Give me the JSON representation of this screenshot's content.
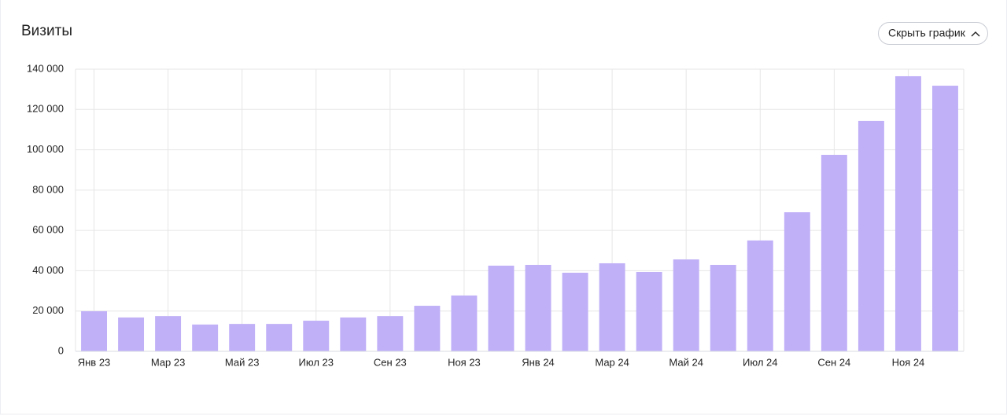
{
  "toggle_button": "Скрыть график",
  "chart_data": {
    "type": "bar",
    "title": "Визиты",
    "categories": [
      "Янв 23",
      null,
      "Мар 23",
      null,
      "Май 23",
      null,
      "Июл 23",
      null,
      "Сен 23",
      null,
      "Ноя 23",
      null,
      "Янв 24",
      null,
      "Мар 24",
      null,
      "Май 24",
      null,
      "Июл 24",
      null,
      "Сен 24",
      null,
      "Ноя 24",
      null
    ],
    "values": [
      19900,
      16800,
      17500,
      13300,
      13600,
      13600,
      15200,
      16800,
      17500,
      22600,
      27700,
      42500,
      42900,
      39000,
      43700,
      39400,
      45600,
      42900,
      55000,
      69000,
      97500,
      114300,
      136500,
      131800
    ],
    "color": "#c0b0f8",
    "ylim": [
      0,
      140000
    ],
    "yticks": [
      0,
      {
        "value": 20000,
        "label": "20 000"
      },
      {
        "value": 40000,
        "label": "40 000"
      },
      {
        "value": 60000,
        "label": "60 000"
      },
      {
        "value": 80000,
        "label": "80 000"
      },
      {
        "value": 100000,
        "label": "100 000"
      },
      {
        "value": 120000,
        "label": "120 000"
      },
      {
        "value": 140000,
        "label": "140 000"
      }
    ],
    "grid": true
  }
}
